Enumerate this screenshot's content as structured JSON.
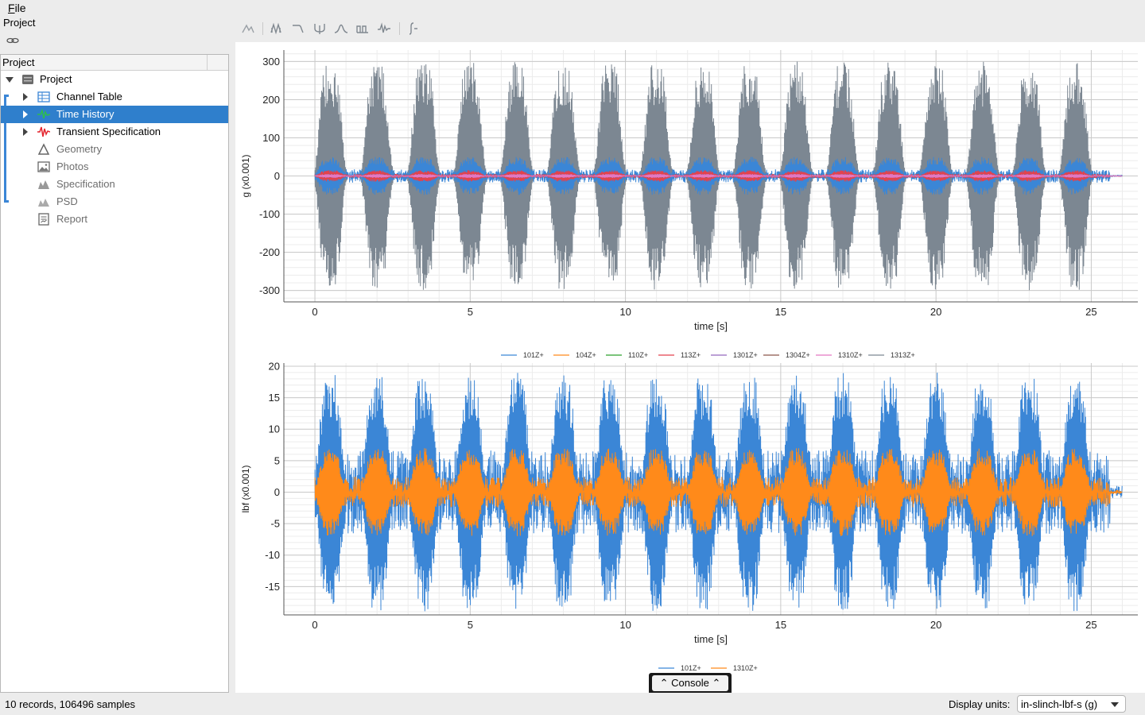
{
  "menu": {
    "file": "File"
  },
  "project_title": "Project",
  "toolbar": {
    "icons": [
      "peak-tool-icon",
      "multi-peak-icon",
      "lowpass-filter-icon",
      "notch-filter-icon",
      "bump-icon",
      "double-peak-icon",
      "wavelet-icon",
      "integral-icon"
    ]
  },
  "tree": {
    "header": "Project",
    "items": [
      {
        "label": "Project",
        "icon": "project-icon",
        "expanded": true
      },
      {
        "label": "Channel Table",
        "icon": "table-icon"
      },
      {
        "label": "Time History",
        "icon": "time-history-icon",
        "selected": true
      },
      {
        "label": "Transient Specification",
        "icon": "transient-icon"
      },
      {
        "label": "Geometry",
        "icon": "geometry-icon"
      },
      {
        "label": "Photos",
        "icon": "photos-icon"
      },
      {
        "label": "Specification",
        "icon": "specification-icon"
      },
      {
        "label": "PSD",
        "icon": "psd-icon"
      },
      {
        "label": "Report",
        "icon": "report-icon"
      }
    ]
  },
  "console": {
    "label": "Console"
  },
  "status": {
    "records": "10 records, 106496 samples",
    "display_units_label": "Display units:",
    "display_units_value": "in-slinch-lbf-s (g)"
  },
  "colors": {
    "blue": "#3b86d6",
    "orange": "#ff8a1a",
    "gray": "#7c8792",
    "red": "#e3424d",
    "selection": "#2f7fcc"
  },
  "chart_data": [
    {
      "type": "line",
      "xlabel": "time [s]",
      "ylabel": "g (x0.001)",
      "xlim": [
        -1,
        26.5
      ],
      "ylim": [
        -330,
        330
      ],
      "xticks": [
        0,
        5,
        10,
        15,
        20,
        25
      ],
      "yticks": [
        300,
        200,
        100,
        0,
        -100,
        -200,
        -300
      ],
      "grid": true,
      "legend_position": "bottom",
      "burst_centers_s": [
        0.5,
        2.0,
        3.5,
        5.0,
        6.5,
        8.0,
        9.5,
        11.0,
        12.5,
        14.0,
        15.5,
        17.0,
        18.5,
        20.0,
        21.5,
        23.0,
        24.5
      ],
      "series": [
        {
          "name": "101Z+",
          "color": "#3b86d6",
          "peak_amplitude": 50
        },
        {
          "name": "104Z+",
          "color": "#ff8a1a",
          "peak_amplitude": 0
        },
        {
          "name": "110Z+",
          "color": "#2ca02c",
          "peak_amplitude": 0
        },
        {
          "name": "113Z+",
          "color": "#e3424d",
          "peak_amplitude": 15
        },
        {
          "name": "1301Z+",
          "color": "#9467bd",
          "peak_amplitude": 5
        },
        {
          "name": "1304Z+",
          "color": "#8c564b",
          "peak_amplitude": 5
        },
        {
          "name": "1310Z+",
          "color": "#e377c2",
          "peak_amplitude": 5
        },
        {
          "name": "1313Z+",
          "color": "#7c8792",
          "peak_amplitude": 300
        }
      ]
    },
    {
      "type": "line",
      "xlabel": "time [s]",
      "ylabel": "lbf (x0.001)",
      "xlim": [
        -1,
        26.5
      ],
      "ylim": [
        -19.5,
        20.5
      ],
      "xticks": [
        0,
        5,
        10,
        15,
        20,
        25
      ],
      "yticks": [
        20,
        15,
        10,
        5,
        0,
        -5,
        -10,
        -15
      ],
      "grid": true,
      "legend_position": "bottom",
      "burst_centers_s": [
        0.5,
        2.0,
        3.5,
        5.0,
        6.5,
        8.0,
        9.5,
        11.0,
        12.5,
        14.0,
        15.5,
        17.0,
        18.5,
        20.0,
        21.5,
        23.0,
        24.5
      ],
      "series": [
        {
          "name": "101Z+",
          "color": "#3b86d6",
          "peak_amplitude": 19
        },
        {
          "name": "1310Z+",
          "color": "#ff8a1a",
          "peak_amplitude": 7
        }
      ]
    }
  ]
}
